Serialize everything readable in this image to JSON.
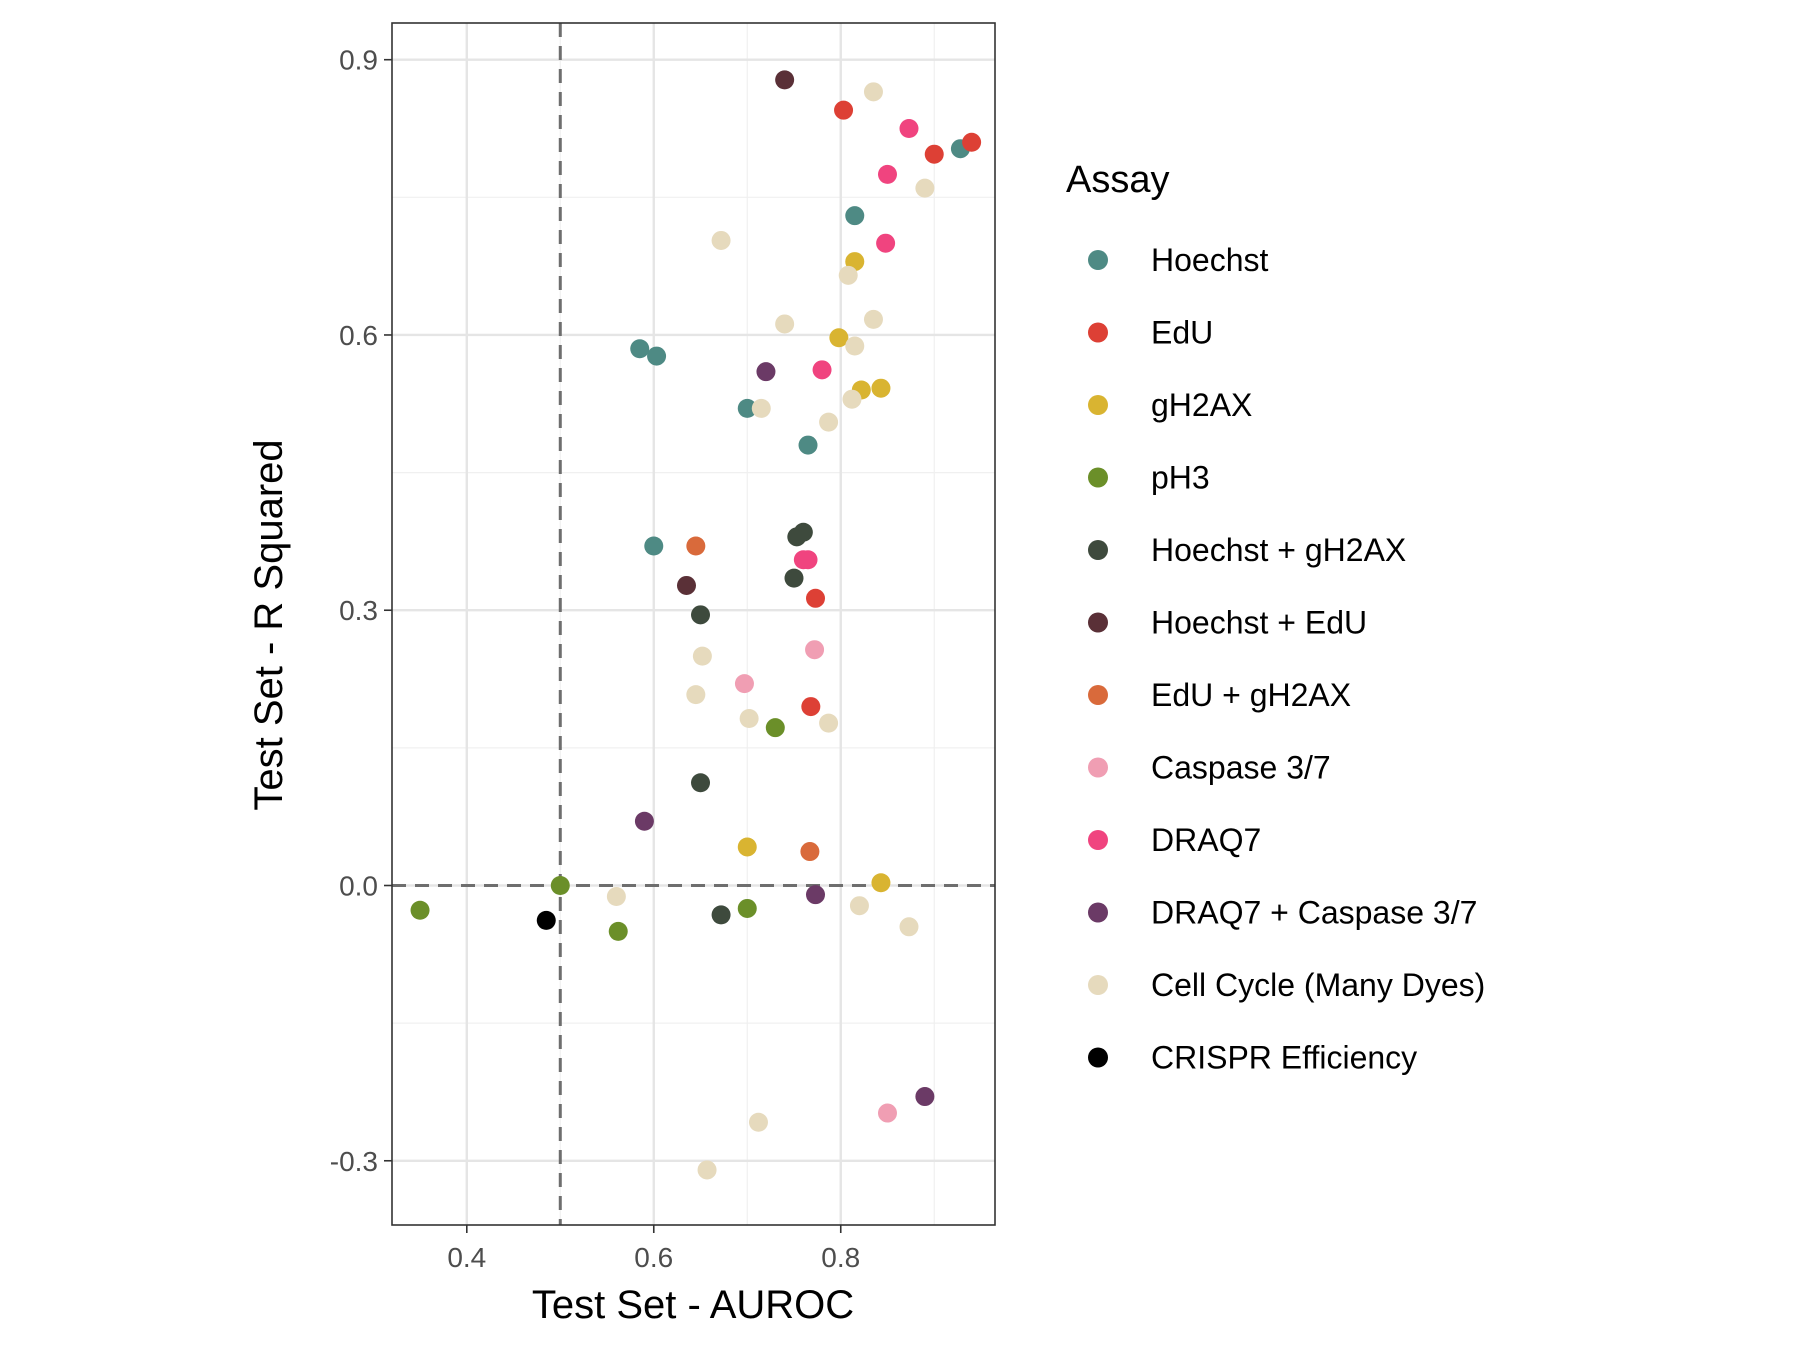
{
  "chart_data": {
    "type": "scatter",
    "title": "",
    "xlabel": "Test Set - AUROC",
    "ylabel": "Test Set - R Squared",
    "xlim": [
      0.32,
      0.965
    ],
    "ylim": [
      -0.37,
      0.94
    ],
    "x_ticks": [
      0.4,
      0.6,
      0.8
    ],
    "x_tick_labels": [
      "0.4",
      "0.6",
      "0.8"
    ],
    "y_ticks": [
      -0.3,
      0.0,
      0.3,
      0.6,
      0.9
    ],
    "y_tick_labels": [
      "-0.3",
      "0.0",
      "0.3",
      "0.6",
      "0.9"
    ],
    "grid": true,
    "reference_lines": {
      "x": 0.5,
      "y": 0.0,
      "style": "dashed"
    },
    "legend_title": "Assay",
    "legend_position": "right",
    "series": [
      {
        "name": "Hoechst",
        "color": "#4e8a84",
        "points": [
          [
            0.585,
            0.585
          ],
          [
            0.603,
            0.577
          ],
          [
            0.7,
            0.52
          ],
          [
            0.765,
            0.48
          ],
          [
            0.815,
            0.73
          ],
          [
            0.928,
            0.803
          ],
          [
            0.6,
            0.37
          ]
        ]
      },
      {
        "name": "EdU",
        "color": "#dd4035",
        "points": [
          [
            0.803,
            0.845
          ],
          [
            0.9,
            0.797
          ],
          [
            0.94,
            0.81
          ],
          [
            0.773,
            0.313
          ],
          [
            0.768,
            0.195
          ]
        ]
      },
      {
        "name": "gH2AX",
        "color": "#d9b431",
        "points": [
          [
            0.815,
            0.68
          ],
          [
            0.798,
            0.597
          ],
          [
            0.822,
            0.54
          ],
          [
            0.843,
            0.542
          ],
          [
            0.7,
            0.042
          ],
          [
            0.843,
            0.003
          ]
        ]
      },
      {
        "name": "pH3",
        "color": "#6b8f29",
        "points": [
          [
            0.35,
            -0.027
          ],
          [
            0.5,
            0.0
          ],
          [
            0.562,
            -0.05
          ],
          [
            0.7,
            -0.025
          ],
          [
            0.73,
            0.172
          ]
        ]
      },
      {
        "name": "Hoechst + gH2AX",
        "color": "#3e4a3d",
        "points": [
          [
            0.753,
            0.38
          ],
          [
            0.76,
            0.385
          ],
          [
            0.75,
            0.335
          ],
          [
            0.65,
            0.295
          ],
          [
            0.65,
            0.112
          ],
          [
            0.672,
            -0.032
          ]
        ]
      },
      {
        "name": "Hoechst + EdU",
        "color": "#5a3037",
        "points": [
          [
            0.74,
            0.878
          ],
          [
            0.635,
            0.327
          ]
        ]
      },
      {
        "name": "EdU + gH2AX",
        "color": "#d96a3b",
        "points": [
          [
            0.645,
            0.37
          ],
          [
            0.767,
            0.037
          ]
        ]
      },
      {
        "name": "Caspase 3/7",
        "color": "#f09eb3",
        "points": [
          [
            0.697,
            0.22
          ],
          [
            0.772,
            0.257
          ],
          [
            0.85,
            -0.248
          ]
        ]
      },
      {
        "name": "DRAQ7",
        "color": "#f0447f",
        "points": [
          [
            0.873,
            0.825
          ],
          [
            0.85,
            0.775
          ],
          [
            0.848,
            0.7
          ],
          [
            0.78,
            0.562
          ],
          [
            0.76,
            0.355
          ],
          [
            0.765,
            0.355
          ]
        ]
      },
      {
        "name": "DRAQ7 + Caspase 3/7",
        "color": "#6b3a66",
        "points": [
          [
            0.72,
            0.56
          ],
          [
            0.59,
            0.07
          ],
          [
            0.773,
            -0.01
          ],
          [
            0.89,
            -0.23
          ]
        ]
      },
      {
        "name": "Cell Cycle (Many Dyes)",
        "color": "#e6dabd",
        "points": [
          [
            0.835,
            0.865
          ],
          [
            0.89,
            0.76
          ],
          [
            0.672,
            0.703
          ],
          [
            0.808,
            0.665
          ],
          [
            0.74,
            0.612
          ],
          [
            0.835,
            0.617
          ],
          [
            0.815,
            0.588
          ],
          [
            0.715,
            0.52
          ],
          [
            0.812,
            0.53
          ],
          [
            0.787,
            0.505
          ],
          [
            0.652,
            0.25
          ],
          [
            0.645,
            0.208
          ],
          [
            0.702,
            0.182
          ],
          [
            0.787,
            0.177
          ],
          [
            0.56,
            -0.012
          ],
          [
            0.82,
            -0.022
          ],
          [
            0.873,
            -0.045
          ],
          [
            0.712,
            -0.258
          ],
          [
            0.657,
            -0.31
          ]
        ]
      },
      {
        "name": "CRISPR Efficiency",
        "color": "#000000",
        "points": [
          [
            0.485,
            -0.038
          ]
        ]
      }
    ]
  }
}
